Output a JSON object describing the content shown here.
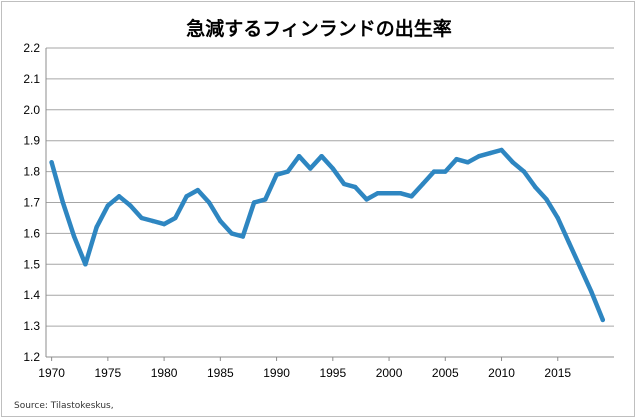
{
  "chart_data": {
    "type": "line",
    "title": "急減するフィンランドの出生率",
    "source": "Source: Tilastokeskus,",
    "xlabel": "",
    "ylabel": "",
    "xlim": [
      1969.5,
      2020
    ],
    "ylim": [
      1.2,
      2.2
    ],
    "y_ticks": [
      "1.2",
      "1.3",
      "1.4",
      "1.5",
      "1.6",
      "1.7",
      "1.8",
      "1.9",
      "2.0",
      "2.1",
      "2.2"
    ],
    "x_ticks": [
      "1970",
      "1975",
      "1980",
      "1985",
      "1990",
      "1995",
      "2000",
      "2005",
      "2010",
      "2015"
    ],
    "grid": true,
    "legend": "none",
    "line_color": "#2E86C1",
    "series": [
      {
        "x": [
          1970,
          1971,
          1972,
          1973,
          1974,
          1975,
          1976,
          1977,
          1978,
          1979,
          1980,
          1981,
          1982,
          1983,
          1984,
          1985,
          1986,
          1987,
          1988,
          1989,
          1990,
          1991,
          1992,
          1993,
          1994,
          1995,
          1996,
          1997,
          1998,
          1999,
          2000,
          2001,
          2002,
          2003,
          2004,
          2005,
          2006,
          2007,
          2008,
          2009,
          2010,
          2011,
          2012,
          2013,
          2014,
          2015,
          2016,
          2017,
          2018,
          2019
        ],
        "values": [
          1.83,
          1.7,
          1.59,
          1.5,
          1.62,
          1.69,
          1.72,
          1.69,
          1.65,
          1.64,
          1.63,
          1.65,
          1.72,
          1.74,
          1.7,
          1.64,
          1.6,
          1.59,
          1.7,
          1.71,
          1.79,
          1.8,
          1.85,
          1.81,
          1.85,
          1.81,
          1.76,
          1.75,
          1.71,
          1.73,
          1.73,
          1.73,
          1.72,
          1.76,
          1.8,
          1.8,
          1.84,
          1.83,
          1.85,
          1.86,
          1.87,
          1.83,
          1.8,
          1.75,
          1.71,
          1.65,
          1.57,
          1.49,
          1.41,
          1.32
        ]
      }
    ]
  }
}
